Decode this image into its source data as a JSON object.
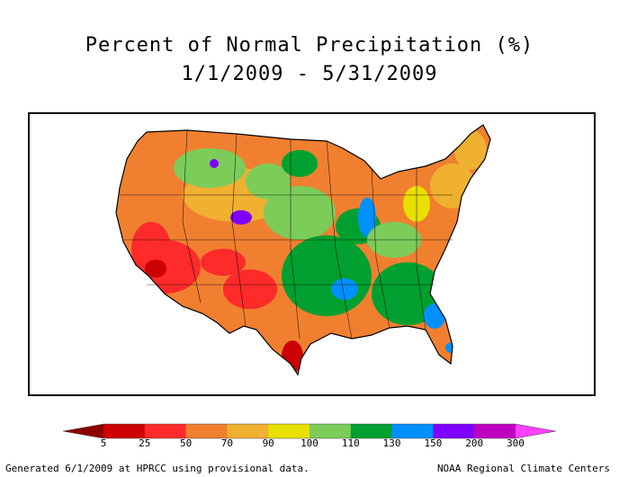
{
  "title": {
    "line1": "Percent of Normal Precipitation (%)",
    "line2": "1/1/2009 - 5/31/2009"
  },
  "legend": {
    "labels": [
      "5",
      "25",
      "50",
      "70",
      "90",
      "100",
      "110",
      "130",
      "150",
      "200",
      "300"
    ],
    "colors": [
      "#8b0000",
      "#cc0000",
      "#ff2a2a",
      "#f08030",
      "#f0b030",
      "#e8e000",
      "#7ccc5a",
      "#00a030",
      "#0090ff",
      "#8000ff",
      "#c000c0",
      "#ff40ff"
    ]
  },
  "map": {
    "region": "contiguous-united-states",
    "background": "#ffffff",
    "outline_color": "#000000"
  },
  "footer": {
    "left": "Generated 6/1/2009 at HPRCC using provisional data.",
    "right": "NOAA Regional Climate Centers"
  }
}
